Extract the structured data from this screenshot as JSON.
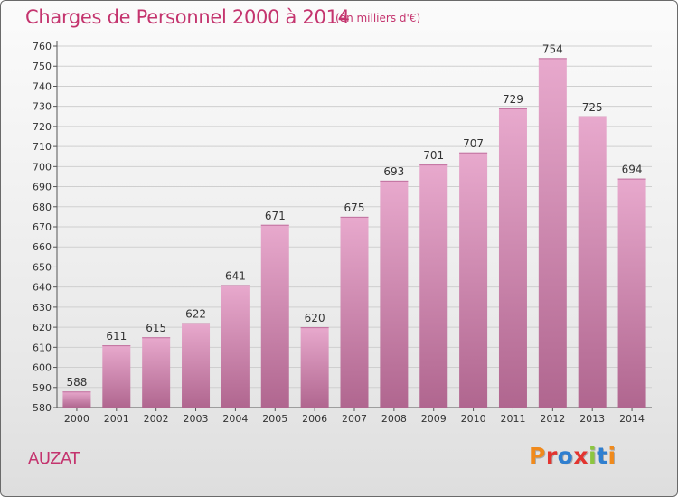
{
  "header": {
    "title": "Charges de Personnel 2000 à 2014",
    "unit": "(en milliers d'€)"
  },
  "footer": {
    "commune": "AUZAT",
    "logo": "Proxiti",
    "logo_colors": [
      "#f08a1c",
      "#e3342f",
      "#2f7fd0",
      "#e3342f",
      "#8cc63f",
      "#2f7fd0",
      "#f08a1c"
    ]
  },
  "colors": {
    "bar_top": "#e8a9cd",
    "bar_bottom": "#b0668f",
    "text_accent": "#c4346e",
    "grid": "#cfcfcf"
  },
  "chart_data": {
    "type": "bar",
    "categories": [
      "2000",
      "2001",
      "2002",
      "2003",
      "2004",
      "2005",
      "2006",
      "2007",
      "2008",
      "2009",
      "2010",
      "2011",
      "2012",
      "2013",
      "2014"
    ],
    "values": [
      588,
      611,
      615,
      622,
      641,
      671,
      620,
      675,
      693,
      701,
      707,
      729,
      754,
      725,
      694
    ],
    "title": "Charges de Personnel 2000 à 2014",
    "ylim": [
      580,
      760
    ],
    "yticks": [
      580,
      590,
      600,
      610,
      620,
      630,
      640,
      650,
      660,
      670,
      680,
      690,
      700,
      710,
      720,
      730,
      740,
      750,
      760
    ],
    "grid": true,
    "legend": "none"
  }
}
